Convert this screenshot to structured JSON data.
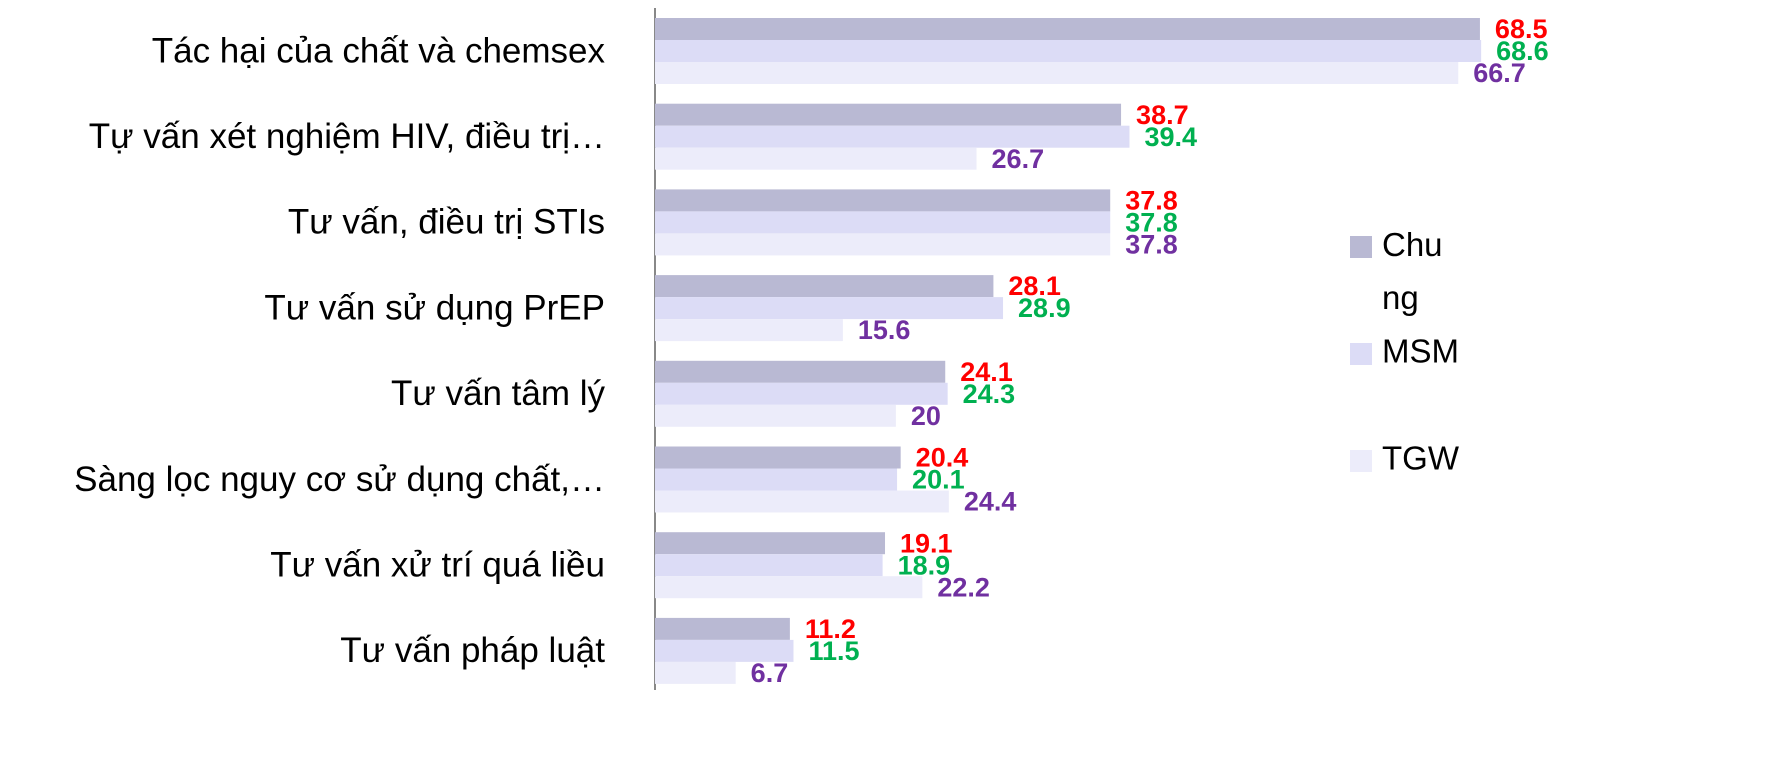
{
  "chart_data": {
    "type": "hbar",
    "categories": [
      "Tác hại của chất và chemsex",
      "Tự vấn xét nghiệm HIV, điều trị…",
      "Tư vấn, điều trị STIs",
      "Tư vấn sử dụng PrEP",
      "Tư vấn tâm lý",
      "Sàng lọc nguy cơ sử dụng chất,…",
      "Tư vấn xử trí quá liều",
      "Tư vấn pháp luật"
    ],
    "series": [
      {
        "name": "Chung",
        "color": "#b9b9d3",
        "label_color": "#ff0000",
        "values": [
          68.5,
          38.7,
          37.8,
          28.1,
          24.1,
          20.4,
          19.1,
          11.2
        ]
      },
      {
        "name": "MSM",
        "color": "#dcdcf6",
        "label_color": "#00b050",
        "values": [
          68.6,
          39.4,
          37.8,
          28.9,
          24.3,
          20.1,
          18.9,
          11.5
        ]
      },
      {
        "name": "TGW",
        "color": "#ececfa",
        "label_color": "#7030a0",
        "values": [
          66.7,
          26.7,
          37.8,
          15.6,
          20,
          24.4,
          22.2,
          6.7
        ]
      }
    ],
    "xlim": [
      0,
      70
    ],
    "legend": "right"
  }
}
